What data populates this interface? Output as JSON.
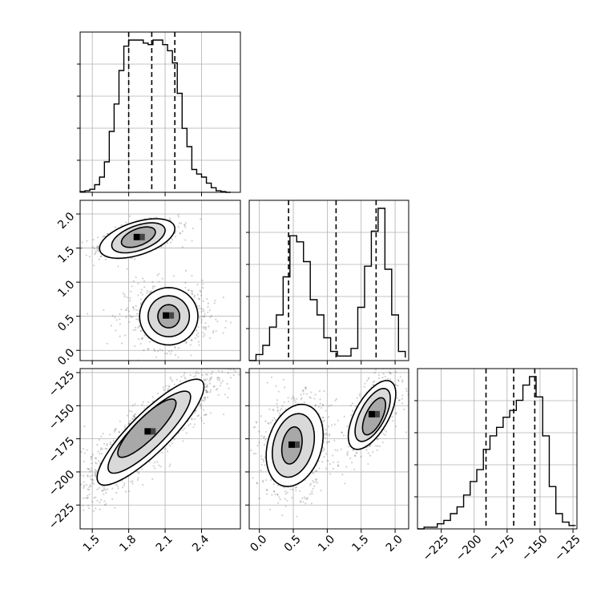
{
  "chart_data": {
    "type": "corner",
    "title": "",
    "parameters": [
      {
        "id": "p0",
        "label": "",
        "range": [
          1.4,
          2.72
        ],
        "ticks": [
          1.5,
          1.8,
          2.1,
          2.4
        ],
        "tick_labels": [
          "1.5",
          "1.8",
          "2.1",
          "2.4"
        ]
      },
      {
        "id": "p1",
        "label": "",
        "range": [
          -0.15,
          2.2
        ],
        "ticks": [
          0.0,
          0.5,
          1.0,
          1.5,
          2.0
        ],
        "tick_labels": [
          "0.0",
          "0.5",
          "1.0",
          "1.5",
          "2.0"
        ]
      },
      {
        "id": "p2",
        "label": "",
        "range": [
          -243,
          -122
        ],
        "ticks": [
          -225,
          -200,
          -175,
          -150,
          -125
        ],
        "tick_labels": [
          "−225",
          "−200",
          "−175",
          "−150",
          "−125"
        ]
      }
    ],
    "histograms": [
      {
        "param": "p0",
        "edges": [
          1.4,
          1.44,
          1.48,
          1.52,
          1.56,
          1.6,
          1.64,
          1.68,
          1.72,
          1.76,
          1.8,
          1.84,
          1.88,
          1.92,
          1.96,
          2.0,
          2.04,
          2.08,
          2.12,
          2.16,
          2.2,
          2.24,
          2.28,
          2.32,
          2.36,
          2.4,
          2.44,
          2.48,
          2.52,
          2.56,
          2.6,
          2.64
        ],
        "counts": [
          0.005,
          0.01,
          0.02,
          0.05,
          0.1,
          0.2,
          0.4,
          0.58,
          0.8,
          0.96,
          1.0,
          1.0,
          1.0,
          0.98,
          0.97,
          1.0,
          1.0,
          0.97,
          0.93,
          0.85,
          0.65,
          0.42,
          0.3,
          0.15,
          0.12,
          0.1,
          0.06,
          0.03,
          0.01,
          0.005,
          0.0
        ],
        "quantiles": [
          1.8,
          1.99,
          2.18
        ]
      },
      {
        "param": "p1",
        "edges": [
          -0.15,
          -0.05,
          0.05,
          0.15,
          0.25,
          0.35,
          0.45,
          0.55,
          0.65,
          0.75,
          0.85,
          0.95,
          1.05,
          1.15,
          1.25,
          1.35,
          1.45,
          1.55,
          1.65,
          1.75,
          1.85,
          1.95,
          2.05,
          2.15
        ],
        "counts": [
          0.0,
          0.04,
          0.1,
          0.22,
          0.3,
          0.55,
          0.82,
          0.78,
          0.65,
          0.4,
          0.3,
          0.15,
          0.06,
          0.03,
          0.03,
          0.08,
          0.35,
          0.62,
          0.85,
          1.0,
          0.6,
          0.3,
          0.06,
          0.02
        ],
        "quantiles": [
          0.43,
          1.13,
          1.72
        ]
      },
      {
        "param": "p2",
        "edges": [
          -243,
          -238,
          -233,
          -228,
          -223,
          -218,
          -213,
          -208,
          -203,
          -198,
          -193,
          -188,
          -183,
          -178,
          -173,
          -168,
          -163,
          -158,
          -153,
          -148,
          -143,
          -138,
          -133,
          -128,
          -123
        ],
        "counts": [
          0.0,
          0.01,
          0.01,
          0.03,
          0.05,
          0.09,
          0.13,
          0.2,
          0.28,
          0.35,
          0.47,
          0.55,
          0.6,
          0.66,
          0.7,
          0.76,
          0.85,
          0.9,
          0.78,
          0.55,
          0.25,
          0.09,
          0.04,
          0.02
        ],
        "quantiles": [
          -191,
          -170,
          -154
        ]
      }
    ],
    "density_panels": [
      {
        "x_param": "p0",
        "y_param": "p1",
        "modes": [
          {
            "center": [
              1.88,
              1.65
            ],
            "sigma": [
              0.12,
              0.09
            ],
            "rho": 0.5,
            "weight": 0.55
          },
          {
            "center": [
              2.12,
              0.5
            ],
            "sigma": [
              0.13,
              0.17
            ],
            "rho": 0.0,
            "weight": 0.45
          }
        ],
        "contours": [
          {
            "center": [
              1.87,
              1.64
            ],
            "radii": [
              0.31,
              0.29
            ],
            "rho": 0.5
          },
          {
            "center": [
              1.88,
              1.65
            ],
            "radii": [
              0.22,
              0.22
            ],
            "rho": 0.5
          },
          {
            "center": [
              1.88,
              1.66
            ],
            "radii": [
              0.14,
              0.15
            ],
            "rho": 0.5
          },
          {
            "center": [
              2.13,
              0.5
            ],
            "radii": [
              0.24,
              0.42
            ],
            "rho": 0.0
          },
          {
            "center": [
              2.13,
              0.5
            ],
            "radii": [
              0.17,
              0.3
            ],
            "rho": 0.0
          },
          {
            "center": [
              2.13,
              0.5
            ],
            "radii": [
              0.09,
              0.17
            ],
            "rho": 0.0
          }
        ]
      },
      {
        "x_param": "p0",
        "y_param": "p2",
        "modes": [
          {
            "center": [
              1.97,
              -170
            ],
            "sigma": [
              0.2,
              17
            ],
            "rho": 0.85,
            "weight": 1.0
          }
        ],
        "contours": [
          {
            "center": [
              1.98,
              -170
            ],
            "radii": [
              0.44,
              40
            ],
            "rho": 0.86
          },
          {
            "center": [
              1.97,
              -170
            ],
            "radii": [
              0.34,
              31
            ],
            "rho": 0.86
          },
          {
            "center": [
              1.95,
              -167
            ],
            "radii": [
              0.24,
              22
            ],
            "rho": 0.86
          }
        ]
      },
      {
        "x_param": "p1",
        "y_param": "p2",
        "modes": [
          {
            "center": [
              1.68,
              -157
            ],
            "sigma": [
              0.14,
              11
            ],
            "rho": 0.6,
            "weight": 0.45
          },
          {
            "center": [
              0.5,
              -180
            ],
            "sigma": [
              0.19,
              14
            ],
            "rho": 0.2,
            "weight": 0.55
          }
        ],
        "contours": [
          {
            "center": [
              1.66,
              -157
            ],
            "radii": [
              0.35,
              26
            ],
            "rho": 0.62
          },
          {
            "center": [
              1.67,
              -157
            ],
            "radii": [
              0.26,
              20
            ],
            "rho": 0.62
          },
          {
            "center": [
              1.69,
              -158
            ],
            "radii": [
              0.17,
              14
            ],
            "rho": 0.62
          },
          {
            "center": [
              0.52,
              -180
            ],
            "radii": [
              0.42,
              31
            ],
            "rho": 0.25
          },
          {
            "center": [
              0.5,
              -180
            ],
            "radii": [
              0.31,
              24
            ],
            "rho": 0.25
          },
          {
            "center": [
              0.48,
              -180
            ],
            "radii": [
              0.15,
              14
            ],
            "rho": 0.25
          }
        ]
      }
    ],
    "grid": true,
    "point_color": "#000000",
    "hist_color": "#000000"
  }
}
